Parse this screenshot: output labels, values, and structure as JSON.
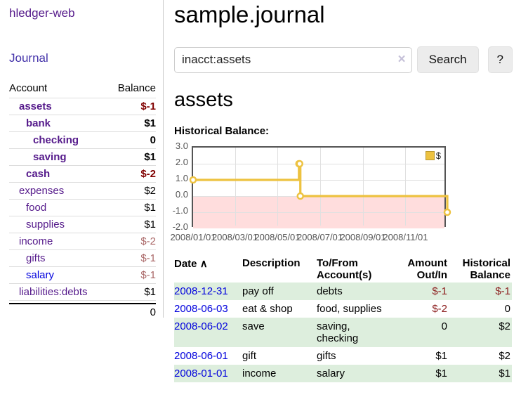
{
  "app": {
    "brand": "hledger-web"
  },
  "colors": {
    "accent_purple": "#551a8b",
    "link_blue": "#0000dd",
    "negative_strong": "#800000",
    "negative_muted": "#aa6868",
    "negative_table": "#8b1c1c",
    "row_green": "#ddeedd",
    "chart_line": "#edc240",
    "chart_fill_negative": "#ffdddd",
    "chart_zero_line": "#8b0000"
  },
  "sidebar": {
    "nav_journal": "Journal",
    "accounts": {
      "header_account": "Account",
      "header_balance": "Balance",
      "rows": [
        {
          "name": "assets",
          "depth": 1,
          "balance": "$-1",
          "matched": true
        },
        {
          "name": "bank",
          "depth": 2,
          "balance": "$1",
          "matched": true
        },
        {
          "name": "checking",
          "depth": 3,
          "balance": "0",
          "matched": true
        },
        {
          "name": "saving",
          "depth": 3,
          "balance": "$1",
          "matched": true
        },
        {
          "name": "cash",
          "depth": 2,
          "balance": "$-2",
          "matched": true
        },
        {
          "name": "expenses",
          "depth": 1,
          "balance": "$2",
          "matched": false
        },
        {
          "name": "food",
          "depth": 2,
          "balance": "$1",
          "matched": false
        },
        {
          "name": "supplies",
          "depth": 2,
          "balance": "$1",
          "matched": false
        },
        {
          "name": "income",
          "depth": 1,
          "balance": "$-2",
          "matched": false
        },
        {
          "name": "gifts",
          "depth": 2,
          "balance": "$-1",
          "matched": false
        },
        {
          "name": "salary",
          "depth": 2,
          "balance": "$-1",
          "matched": false,
          "unvisited": true
        },
        {
          "name": "liabilities:debts",
          "depth": 1,
          "balance": "$1",
          "matched": false
        }
      ],
      "total": "0"
    }
  },
  "main": {
    "title": "sample.journal",
    "search": {
      "value": "inacct:assets",
      "clear_icon": "×",
      "button_label": "Search",
      "help_label": "?"
    },
    "account_heading": "assets",
    "chart_label": "Historical Balance:",
    "register": {
      "headers": {
        "date": "Date",
        "description": "Description",
        "accounts": "To/From Account(s)",
        "amount": "Amount Out/In",
        "balance": "Historical Balance"
      },
      "sort_icon": "∧",
      "rows": [
        {
          "date": "2008-12-31",
          "description": "pay off",
          "accounts": "debts",
          "amount": "$-1",
          "balance": "$-1"
        },
        {
          "date": "2008-06-03",
          "description": "eat & shop",
          "accounts": "food, supplies",
          "amount": "$-2",
          "balance": "0"
        },
        {
          "date": "2008-06-02",
          "description": "save",
          "accounts": "saving, checking",
          "amount": "0",
          "balance": "$2"
        },
        {
          "date": "2008-06-01",
          "description": "gift",
          "accounts": "gifts",
          "amount": "$1",
          "balance": "$2"
        },
        {
          "date": "2008-01-01",
          "description": "income",
          "accounts": "salary",
          "amount": "$1",
          "balance": "$1"
        }
      ]
    }
  },
  "chart_data": {
    "type": "line",
    "step": true,
    "title": "Historical Balance",
    "series": [
      {
        "name": "$",
        "points": [
          {
            "date": "2008-01-01",
            "value": 1
          },
          {
            "date": "2008-06-01",
            "value": 2
          },
          {
            "date": "2008-06-02",
            "value": 2
          },
          {
            "date": "2008-06-03",
            "value": 0
          },
          {
            "date": "2008-12-31",
            "value": -1
          }
        ]
      }
    ],
    "xlim": [
      "2008-01-01",
      "2008-12-31"
    ],
    "ylim": [
      -2,
      3
    ],
    "yticks": [
      {
        "v": 3,
        "label": "3.0"
      },
      {
        "v": 2,
        "label": "2.0"
      },
      {
        "v": 1,
        "label": "1.0"
      },
      {
        "v": 0,
        "label": "0.0"
      },
      {
        "v": -1,
        "label": "-1.0"
      },
      {
        "v": -2,
        "label": "-2.0"
      }
    ],
    "xticks": [
      {
        "date": "2008-01-01",
        "label": "2008/01/01"
      },
      {
        "date": "2008-03-01",
        "label": "2008/03/01"
      },
      {
        "date": "2008-05-01",
        "label": "2008/05/01"
      },
      {
        "date": "2008-07-01",
        "label": "2008/07/01"
      },
      {
        "date": "2008-09-01",
        "label": "2008/09/01"
      },
      {
        "date": "2008-11-01",
        "label": "2008/11/01"
      }
    ],
    "legend": {
      "position": "top-right",
      "label": "$"
    },
    "grid": true
  }
}
